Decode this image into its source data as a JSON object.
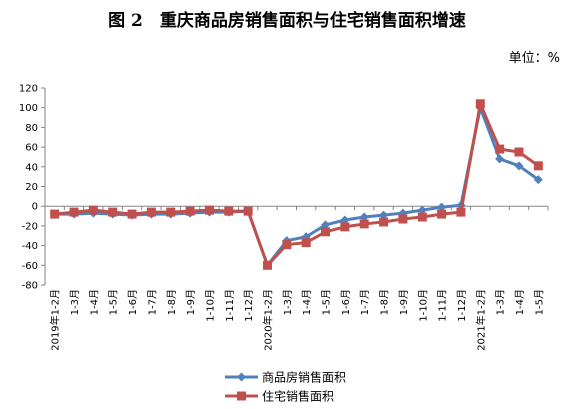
{
  "chart_data": {
    "type": "line",
    "title": "图 2　重庆商品房销售面积与住宅销售面积增速",
    "unit": "单位：%",
    "xlabel": "",
    "ylabel": "",
    "ylim": [
      -80,
      120
    ],
    "yticks": [
      120,
      100,
      80,
      60,
      40,
      20,
      0,
      -20,
      -40,
      -60,
      -80
    ],
    "grid": false,
    "legend_position": "bottom",
    "categories": [
      "2019年1-2月",
      "1-3月",
      "1-4月",
      "1-5月",
      "1-6月",
      "1-7月",
      "1-8月",
      "1-9月",
      "1-10月",
      "1-11月",
      "1-12月",
      "2020年1-2月",
      "1-3月",
      "1-4月",
      "1-5月",
      "1-6月",
      "1-7月",
      "1-8月",
      "1-9月",
      "1-10月",
      "1-11月",
      "1-12月",
      "2021年1-2月",
      "1-3月",
      "1-4月",
      "1-5月"
    ],
    "series": [
      {
        "name": "商品房销售面积",
        "color": "#4F81BD",
        "marker": "diamond",
        "values": [
          -8,
          -8,
          -7,
          -8,
          -9,
          -8,
          -8,
          -7,
          -6,
          -6,
          -5,
          -60,
          -35,
          -31,
          -19,
          -14,
          -11,
          -9,
          -7,
          -4,
          -1,
          1,
          100,
          48,
          41,
          27
        ]
      },
      {
        "name": "住宅销售面积",
        "color": "#C0504D",
        "marker": "square",
        "values": [
          -8,
          -6,
          -4,
          -6,
          -8,
          -6,
          -6,
          -5,
          -4,
          -5,
          -5,
          -60,
          -39,
          -37,
          -26,
          -21,
          -18,
          -16,
          -13,
          -11,
          -8,
          -6,
          104,
          58,
          55,
          41
        ]
      }
    ]
  }
}
